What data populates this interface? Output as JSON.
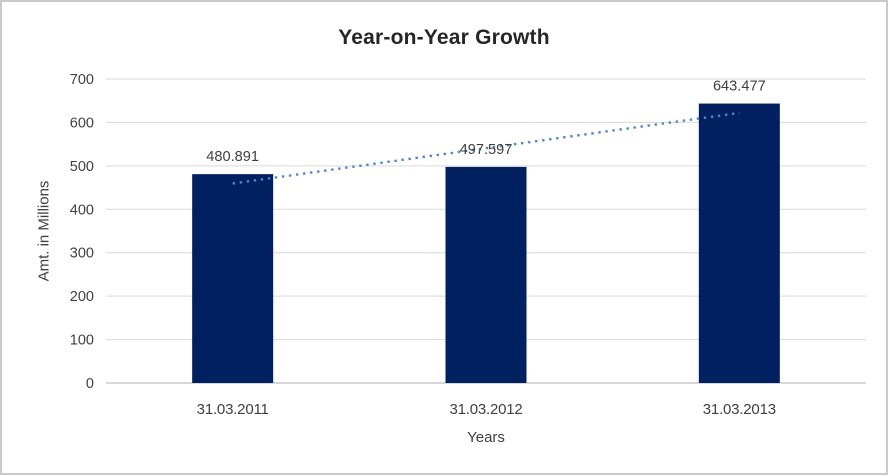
{
  "frame": {
    "background": "#FFFFFF",
    "border_color": "#C9C9C9"
  },
  "chart_data": {
    "type": "bar",
    "title": "Year-on-Year Growth",
    "xlabel": "Years",
    "ylabel": "Amt. in Millions",
    "categories": [
      "31.03.2011",
      "31.03.2012",
      "31.03.2013"
    ],
    "values": [
      480.891,
      497.597,
      643.477
    ],
    "value_labels": [
      "480.891",
      "497.597",
      "643.477"
    ],
    "yticks": [
      0,
      100,
      200,
      300,
      400,
      500,
      600,
      700
    ],
    "ylim": [
      0,
      700
    ],
    "grid": "horizontal",
    "legend": "none",
    "trendline": {
      "type": "linear",
      "style": "dotted",
      "color": "#4E86CF"
    },
    "colors": {
      "bar": "#002060",
      "gridline": "#D9D9D9",
      "axis_line": "#BFBFBF",
      "tick_text": "#404040",
      "value_label_text": "#404040",
      "title_text": "#262626"
    }
  }
}
